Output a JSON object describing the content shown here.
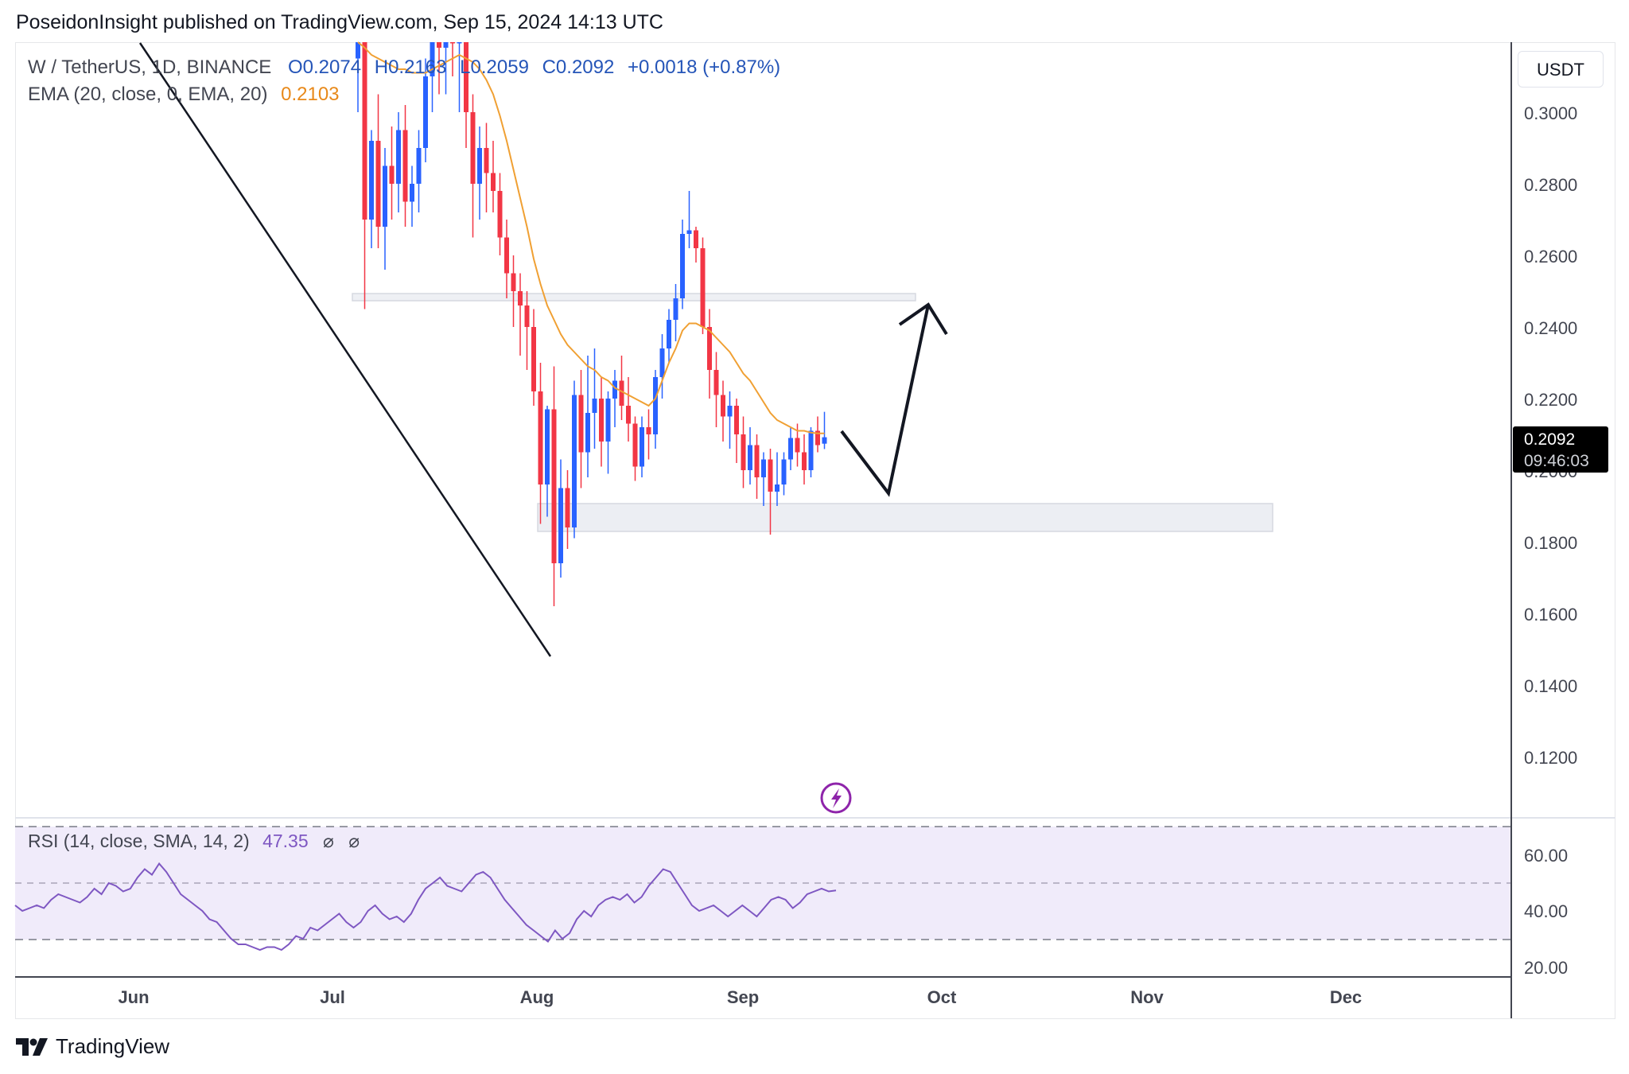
{
  "header": {
    "published": "PoseidonInsight published on TradingView.com, Sep 15, 2024 14:13 UTC"
  },
  "legend": {
    "symbol": "W / TetherUS, 1D, BINANCE",
    "open": "O0.2074",
    "high": "H0.2163",
    "low": "L0.2059",
    "close": "C0.2092",
    "change": "+0.0018 (+0.87%)",
    "ema_label": "EMA (20, close, 0, EMA, 20)",
    "ema_value": "0.2103"
  },
  "rsi_legend": {
    "label": "RSI (14, close, SMA, 14, 2)",
    "value": "47.35",
    "na1": "⌀",
    "na2": "⌀"
  },
  "price_axis": {
    "unit": "USDT",
    "ticks": [
      "0.3000",
      "0.2800",
      "0.2600",
      "0.2400",
      "0.2200",
      "0.2000",
      "0.1800",
      "0.1600",
      "0.1400",
      "0.1200"
    ],
    "current_price": "0.2092",
    "countdown": "09:46:03"
  },
  "rsi_axis": {
    "ticks": [
      "60.00",
      "40.00",
      "20.00"
    ]
  },
  "time_axis": {
    "labels": [
      "Jun",
      "Jul",
      "Aug",
      "Sep",
      "Oct",
      "Nov",
      "Dec"
    ]
  },
  "footer": {
    "brand": "TradingView"
  },
  "colors": {
    "up": "#2962ff",
    "down": "#f23645",
    "ema": "#f0a033",
    "rsi": "#7e57c2",
    "rsi_band": "#f0ebfa",
    "zone": "#eceef3"
  },
  "chart_data": [
    {
      "type": "candlestick",
      "title": "W / TetherUS, 1D, BINANCE",
      "ylim": [
        0.105,
        0.315
      ],
      "y_ticks": [
        0.3,
        0.28,
        0.26,
        0.24,
        0.22,
        0.2,
        0.18,
        0.16,
        0.14,
        0.12
      ],
      "x_tick_labels": [
        "Jun",
        "Jul",
        "Aug",
        "Sep",
        "Oct",
        "Nov",
        "Dec"
      ],
      "last": {
        "open": 0.2074,
        "high": 0.2163,
        "low": 0.2059,
        "close": 0.2092
      },
      "series": [
        {
          "name": "W / TetherUS",
          "ohlc": [
            [
              0.315,
              0.34,
              0.3,
              0.33
            ],
            [
              0.32,
              0.33,
              0.245,
              0.27
            ],
            [
              0.27,
              0.295,
              0.262,
              0.292
            ],
            [
              0.292,
              0.305,
              0.262,
              0.268
            ],
            [
              0.268,
              0.29,
              0.256,
              0.285
            ],
            [
              0.285,
              0.296,
              0.27,
              0.28
            ],
            [
              0.28,
              0.3,
              0.272,
              0.295
            ],
            [
              0.295,
              0.302,
              0.268,
              0.275
            ],
            [
              0.275,
              0.285,
              0.268,
              0.28
            ],
            [
              0.28,
              0.295,
              0.272,
              0.29
            ],
            [
              0.29,
              0.315,
              0.286,
              0.31
            ],
            [
              0.31,
              0.33,
              0.3,
              0.325
            ],
            [
              0.325,
              0.34,
              0.305,
              0.318
            ],
            [
              0.318,
              0.345,
              0.305,
              0.33
            ],
            [
              0.33,
              0.345,
              0.31,
              0.32
            ],
            [
              0.32,
              0.345,
              0.3,
              0.335
            ],
            [
              0.33,
              0.335,
              0.29,
              0.3
            ],
            [
              0.3,
              0.305,
              0.265,
              0.28
            ],
            [
              0.28,
              0.296,
              0.27,
              0.29
            ],
            [
              0.29,
              0.297,
              0.272,
              0.283
            ],
            [
              0.283,
              0.292,
              0.272,
              0.278
            ],
            [
              0.278,
              0.283,
              0.26,
              0.265
            ],
            [
              0.265,
              0.27,
              0.248,
              0.255
            ],
            [
              0.255,
              0.26,
              0.24,
              0.25
            ],
            [
              0.25,
              0.255,
              0.232,
              0.246
            ],
            [
              0.246,
              0.25,
              0.228,
              0.24
            ],
            [
              0.24,
              0.245,
              0.218,
              0.222
            ],
            [
              0.222,
              0.23,
              0.185,
              0.196
            ],
            [
              0.196,
              0.218,
              0.187,
              0.217
            ],
            [
              0.217,
              0.229,
              0.162,
              0.174
            ],
            [
              0.174,
              0.203,
              0.17,
              0.195
            ],
            [
              0.195,
              0.2,
              0.178,
              0.184
            ],
            [
              0.184,
              0.225,
              0.181,
              0.221
            ],
            [
              0.221,
              0.228,
              0.195,
              0.205
            ],
            [
              0.205,
              0.232,
              0.198,
              0.216
            ],
            [
              0.216,
              0.234,
              0.206,
              0.22
            ],
            [
              0.22,
              0.226,
              0.201,
              0.208
            ],
            [
              0.208,
              0.222,
              0.199,
              0.22
            ],
            [
              0.22,
              0.228,
              0.212,
              0.225
            ],
            [
              0.225,
              0.232,
              0.214,
              0.218
            ],
            [
              0.218,
              0.226,
              0.208,
              0.213
            ],
            [
              0.213,
              0.215,
              0.197,
              0.201
            ],
            [
              0.201,
              0.215,
              0.198,
              0.212
            ],
            [
              0.212,
              0.217,
              0.203,
              0.21
            ],
            [
              0.21,
              0.228,
              0.206,
              0.226
            ],
            [
              0.226,
              0.238,
              0.22,
              0.234
            ],
            [
              0.234,
              0.245,
              0.23,
              0.242
            ],
            [
              0.242,
              0.252,
              0.236,
              0.248
            ],
            [
              0.248,
              0.27,
              0.245,
              0.266
            ],
            [
              0.266,
              0.278,
              0.262,
              0.267
            ],
            [
              0.267,
              0.268,
              0.258,
              0.262
            ],
            [
              0.262,
              0.265,
              0.238,
              0.24
            ],
            [
              0.24,
              0.245,
              0.22,
              0.228
            ],
            [
              0.228,
              0.233,
              0.212,
              0.221
            ],
            [
              0.221,
              0.225,
              0.208,
              0.215
            ],
            [
              0.215,
              0.222,
              0.206,
              0.218
            ],
            [
              0.218,
              0.22,
              0.202,
              0.21
            ],
            [
              0.21,
              0.215,
              0.195,
              0.2
            ],
            [
              0.2,
              0.212,
              0.196,
              0.207
            ],
            [
              0.207,
              0.21,
              0.192,
              0.198
            ],
            [
              0.198,
              0.205,
              0.19,
              0.203
            ],
            [
              0.203,
              0.206,
              0.182,
              0.194
            ],
            [
              0.194,
              0.205,
              0.19,
              0.196
            ],
            [
              0.196,
              0.205,
              0.193,
              0.203
            ],
            [
              0.203,
              0.212,
              0.2,
              0.209
            ],
            [
              0.209,
              0.213,
              0.201,
              0.205
            ],
            [
              0.205,
              0.21,
              0.196,
              0.2
            ],
            [
              0.2,
              0.212,
              0.198,
              0.211
            ],
            [
              0.211,
              0.215,
              0.205,
              0.207
            ],
            [
              0.2074,
              0.2163,
              0.2059,
              0.2092
            ]
          ]
        },
        {
          "name": "EMA (20, close, 0, EMA, 20)",
          "values": [
            0.32,
            0.318,
            0.316,
            0.315,
            0.314,
            0.313,
            0.312,
            0.312,
            0.311,
            0.311,
            0.311,
            0.312,
            0.313,
            0.314,
            0.315,
            0.316,
            0.315,
            0.314,
            0.312,
            0.309,
            0.305,
            0.299,
            0.292,
            0.284,
            0.276,
            0.268,
            0.259,
            0.252,
            0.246,
            0.242,
            0.238,
            0.235,
            0.233,
            0.231,
            0.229,
            0.228,
            0.226,
            0.225,
            0.223,
            0.222,
            0.221,
            0.22,
            0.219,
            0.218,
            0.22,
            0.225,
            0.23,
            0.234,
            0.239,
            0.241,
            0.241,
            0.24,
            0.239,
            0.237,
            0.235,
            0.233,
            0.23,
            0.227,
            0.225,
            0.222,
            0.219,
            0.216,
            0.214,
            0.213,
            0.212,
            0.211,
            0.211,
            0.2105,
            0.2103,
            0.2103
          ]
        }
      ]
    },
    {
      "type": "line",
      "title": "RSI (14, close, SMA, 14, 2)",
      "ylim": [
        18,
        72
      ],
      "bands": [
        30,
        50,
        70
      ],
      "y_ticks": [
        60,
        40,
        20
      ],
      "series": [
        {
          "name": "RSI",
          "values": [
            42,
            40,
            41,
            42,
            41,
            44,
            46,
            45,
            44,
            43,
            45,
            48,
            46,
            50,
            49,
            47,
            48,
            52,
            55,
            53,
            57,
            54,
            50,
            46,
            44,
            42,
            40,
            37,
            36,
            33,
            30,
            28,
            28,
            27,
            26,
            27,
            27,
            26,
            28,
            31,
            30,
            34,
            33,
            35,
            37,
            39,
            36,
            34,
            36,
            40,
            42,
            39,
            37,
            38,
            36,
            39,
            44,
            48,
            50,
            52,
            49,
            48,
            47,
            50,
            53,
            54,
            52,
            48,
            44,
            41,
            38,
            35,
            33,
            31,
            29,
            33,
            30,
            32,
            37,
            40,
            38,
            42,
            44,
            45,
            44,
            46,
            43,
            45,
            49,
            52,
            55,
            54,
            50,
            46,
            42,
            40,
            41,
            42,
            40,
            38,
            40,
            42,
            40,
            38,
            41,
            44,
            45,
            44,
            41,
            43,
            46,
            47,
            48,
            47,
            47.35
          ]
        }
      ]
    }
  ]
}
